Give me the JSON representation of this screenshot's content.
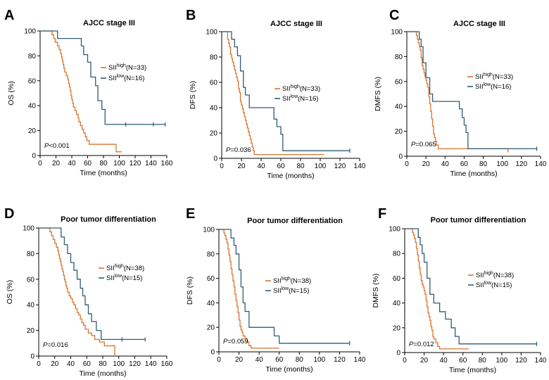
{
  "colors": {
    "high": "#D9742E",
    "low": "#2E5D74",
    "axis": "#000000"
  },
  "chart_data": [
    {
      "panel": "A",
      "type": "line",
      "title": "AJCC stage III",
      "xlabel": "Time (months)",
      "ylabel": "OS (%)",
      "xlim": [
        0,
        160
      ],
      "xticks": [
        0,
        20,
        40,
        60,
        80,
        100,
        120,
        140,
        160
      ],
      "ylim": [
        0,
        100
      ],
      "yticks": [
        0,
        20,
        40,
        60,
        80,
        100
      ],
      "p_italic": "P",
      "p_rest": "<0.001",
      "series": [
        {
          "key": "high",
          "name_base": "SII",
          "name_sup": "high",
          "name_n": "(N=33)",
          "x": [
            0,
            13,
            15,
            17,
            19,
            22,
            24,
            26,
            27,
            28,
            29,
            30,
            31,
            33,
            35,
            36,
            37,
            38,
            39,
            40,
            41,
            42,
            44,
            46,
            48,
            49,
            51,
            53,
            55,
            57,
            59,
            62,
            65,
            68,
            72,
            96,
            103
          ],
          "y": [
            100,
            100,
            97,
            94,
            91,
            88,
            85,
            82,
            79,
            76,
            73,
            70,
            67,
            64,
            61,
            58,
            55,
            52,
            48,
            45,
            42,
            39,
            36,
            33,
            30,
            27,
            24,
            21,
            18,
            15,
            12,
            9,
            9,
            9,
            9,
            3,
            3
          ],
          "censor_x": [],
          "censor_y": []
        },
        {
          "key": "low",
          "name_base": "SII",
          "name_sup": "low",
          "name_n": "(N=16)",
          "x": [
            0,
            17,
            22,
            45,
            52,
            55,
            60,
            64,
            70,
            73,
            78,
            82,
            158
          ],
          "y": [
            100,
            100,
            94,
            94,
            88,
            81,
            75,
            63,
            56,
            44,
            37,
            25,
            25
          ],
          "censor_x": [
            108,
            143,
            158
          ],
          "censor_y": [
            25,
            25,
            25
          ]
        }
      ]
    },
    {
      "panel": "B",
      "type": "line",
      "title": "AJCC stage III",
      "xlabel": "Time (months)",
      "ylabel": "DFS (%)",
      "xlim": [
        0,
        140
      ],
      "xticks": [
        0,
        20,
        40,
        60,
        80,
        100,
        120,
        140
      ],
      "ylim": [
        0,
        100
      ],
      "yticks": [
        0,
        20,
        40,
        60,
        80,
        100
      ],
      "p_italic": "P",
      "p_rest": "=0.036",
      "series": [
        {
          "key": "high",
          "name_base": "SII",
          "name_sup": "high",
          "name_n": "(N=33)",
          "x": [
            0,
            5,
            6,
            7,
            8,
            9,
            10,
            11,
            12,
            13,
            14,
            15,
            16,
            17,
            18,
            19,
            20,
            21,
            22,
            23,
            24,
            25,
            26,
            27,
            28,
            29,
            30,
            31,
            32,
            33,
            35,
            104
          ],
          "y": [
            100,
            100,
            94,
            91,
            88,
            82,
            79,
            76,
            73,
            70,
            67,
            64,
            61,
            55,
            52,
            45,
            42,
            39,
            36,
            33,
            30,
            27,
            24,
            21,
            18,
            15,
            12,
            9,
            6,
            3,
            3,
            3
          ],
          "censor_x": [],
          "censor_y": []
        },
        {
          "key": "low",
          "name_base": "SII",
          "name_sup": "low",
          "name_n": "(N=16)",
          "x": [
            0,
            6,
            10,
            13,
            16,
            19,
            22,
            24,
            28,
            40,
            48,
            53,
            56,
            60,
            62,
            130
          ],
          "y": [
            100,
            100,
            94,
            88,
            81,
            69,
            56,
            50,
            40,
            40,
            40,
            31,
            25,
            19,
            6,
            6
          ],
          "censor_x": [
            130
          ],
          "censor_y": [
            6
          ]
        }
      ]
    },
    {
      "panel": "C",
      "type": "line",
      "title": "AJCC stage III",
      "xlabel": "Time (months)",
      "ylabel": "DMFS (%)",
      "xlim": [
        0,
        140
      ],
      "xticks": [
        0,
        20,
        40,
        60,
        80,
        100,
        120,
        140
      ],
      "ylim": [
        0,
        100
      ],
      "yticks": [
        0,
        20,
        40,
        60,
        80,
        100
      ],
      "p_italic": "P",
      "p_rest": "=0.065",
      "series": [
        {
          "key": "high",
          "name_base": "SII",
          "name_sup": "high",
          "name_n": "(N=33)",
          "x": [
            0,
            8,
            10,
            11,
            12,
            13,
            14,
            15,
            16,
            17,
            18,
            19,
            20,
            21,
            22,
            23,
            24,
            25,
            26,
            27,
            28,
            29,
            30,
            31,
            33,
            106
          ],
          "y": [
            100,
            100,
            97,
            94,
            91,
            88,
            85,
            79,
            73,
            70,
            67,
            64,
            61,
            58,
            55,
            48,
            42,
            36,
            30,
            24,
            18,
            15,
            12,
            9,
            6,
            3
          ],
          "censor_x": [],
          "censor_y": []
        },
        {
          "key": "low",
          "name_base": "SII",
          "name_sup": "low",
          "name_n": "(N=16)",
          "x": [
            0,
            10,
            13,
            15,
            17,
            20,
            24,
            27,
            50,
            55,
            58,
            60,
            62,
            64,
            136
          ],
          "y": [
            100,
            100,
            94,
            88,
            75,
            63,
            50,
            44,
            44,
            38,
            31,
            25,
            19,
            6,
            6
          ],
          "censor_x": [
            136
          ],
          "censor_y": [
            6
          ]
        }
      ]
    },
    {
      "panel": "D",
      "type": "line",
      "title": "Poor tumor differentiation",
      "xlabel": "Time (months)",
      "ylabel": "OS (%)",
      "xlim": [
        0,
        160
      ],
      "xticks": [
        0,
        20,
        40,
        60,
        80,
        100,
        120,
        140,
        160
      ],
      "ylim": [
        0,
        100
      ],
      "yticks": [
        0,
        20,
        40,
        60,
        80,
        100
      ],
      "p_italic": "P",
      "p_rest": "=0.016",
      "series": [
        {
          "key": "high",
          "name_base": "SII",
          "name_sup": "high",
          "name_n": "(N=38)",
          "x": [
            0,
            12,
            14,
            16,
            18,
            20,
            22,
            24,
            25,
            26,
            27,
            28,
            29,
            30,
            31,
            32,
            33,
            34,
            35,
            36,
            38,
            40,
            42,
            44,
            46,
            48,
            50,
            52,
            54,
            56,
            58,
            62,
            66,
            70,
            76,
            82,
            88,
            92,
            95
          ],
          "y": [
            100,
            100,
            97,
            94,
            91,
            88,
            85,
            82,
            79,
            76,
            74,
            71,
            68,
            66,
            63,
            60,
            58,
            55,
            53,
            50,
            47,
            45,
            42,
            40,
            37,
            34,
            32,
            29,
            26,
            24,
            21,
            18,
            16,
            13,
            11,
            8,
            8,
            8,
            0
          ],
          "censor_x": [],
          "censor_y": []
        },
        {
          "key": "low",
          "name_base": "SII",
          "name_sup": "low",
          "name_n": "(N=15)",
          "x": [
            0,
            25,
            28,
            32,
            36,
            40,
            44,
            48,
            52,
            55,
            58,
            62,
            66,
            72,
            78,
            82,
            133
          ],
          "y": [
            100,
            100,
            93,
            87,
            80,
            73,
            67,
            60,
            53,
            47,
            40,
            33,
            27,
            20,
            13,
            13,
            13
          ],
          "censor_x": [
            104,
            133
          ],
          "censor_y": [
            13,
            13
          ]
        }
      ]
    },
    {
      "panel": "E",
      "type": "line",
      "title": "Poor tumor differentiation",
      "xlabel": "Time (months)",
      "ylabel": "DFS (%)",
      "xlim": [
        0,
        140
      ],
      "xticks": [
        0,
        20,
        40,
        60,
        80,
        100,
        120,
        140
      ],
      "ylim": [
        0,
        100
      ],
      "yticks": [
        0,
        20,
        40,
        60,
        80,
        100
      ],
      "p_italic": "P",
      "p_rest": "=0.059",
      "series": [
        {
          "key": "high",
          "name_base": "SII",
          "name_sup": "high",
          "name_n": "(N=38)",
          "x": [
            0,
            4,
            5,
            6,
            7,
            8,
            9,
            10,
            11,
            12,
            13,
            14,
            15,
            16,
            17,
            18,
            19,
            20,
            21,
            22,
            23,
            24,
            26,
            28,
            30,
            32,
            36,
            40,
            44,
            48,
            60
          ],
          "y": [
            100,
            100,
            97,
            95,
            92,
            89,
            84,
            79,
            74,
            68,
            63,
            58,
            53,
            47,
            42,
            37,
            32,
            26,
            21,
            18,
            16,
            13,
            11,
            8,
            5,
            3,
            3,
            3,
            3,
            3,
            3
          ],
          "censor_x": [],
          "censor_y": []
        },
        {
          "key": "low",
          "name_base": "SII",
          "name_sup": "low",
          "name_n": "(N=15)",
          "x": [
            0,
            9,
            12,
            15,
            17,
            20,
            22,
            24,
            26,
            30,
            40,
            50,
            55,
            60,
            62,
            130
          ],
          "y": [
            100,
            100,
            93,
            87,
            80,
            67,
            53,
            40,
            33,
            20,
            20,
            20,
            13,
            7,
            7,
            7
          ],
          "censor_x": [
            130
          ],
          "censor_y": [
            7
          ]
        }
      ]
    },
    {
      "panel": "F",
      "type": "line",
      "title": "Poor tumor differentiation",
      "xlabel": "Time (months)",
      "ylabel": "DMFS (%)",
      "xlim": [
        0,
        140
      ],
      "xticks": [
        0,
        20,
        40,
        60,
        80,
        100,
        120,
        140
      ],
      "ylim": [
        0,
        100
      ],
      "yticks": [
        0,
        20,
        40,
        60,
        80,
        100
      ],
      "p_italic": "P",
      "p_rest": "=0.012",
      "series": [
        {
          "key": "high",
          "name_base": "SII",
          "name_sup": "high",
          "name_n": "(N=38)",
          "x": [
            0,
            6,
            8,
            9,
            10,
            11,
            12,
            13,
            14,
            15,
            16,
            17,
            18,
            19,
            20,
            21,
            22,
            23,
            24,
            25,
            26,
            27,
            28,
            29,
            30,
            32,
            34,
            36,
            40,
            50,
            66
          ],
          "y": [
            100,
            100,
            97,
            95,
            92,
            89,
            84,
            79,
            74,
            68,
            63,
            58,
            55,
            53,
            50,
            47,
            42,
            37,
            32,
            29,
            26,
            21,
            18,
            13,
            11,
            8,
            5,
            3,
            3,
            3,
            3
          ],
          "censor_x": [],
          "censor_y": []
        },
        {
          "key": "low",
          "name_base": "SII",
          "name_sup": "low",
          "name_n": "(N=15)",
          "x": [
            0,
            12,
            14,
            16,
            18,
            20,
            23,
            26,
            30,
            36,
            42,
            48,
            52,
            56,
            136
          ],
          "y": [
            100,
            100,
            93,
            87,
            80,
            73,
            60,
            47,
            40,
            33,
            27,
            20,
            13,
            7,
            7
          ],
          "censor_x": [
            136
          ],
          "censor_y": [
            7
          ]
        }
      ]
    }
  ]
}
